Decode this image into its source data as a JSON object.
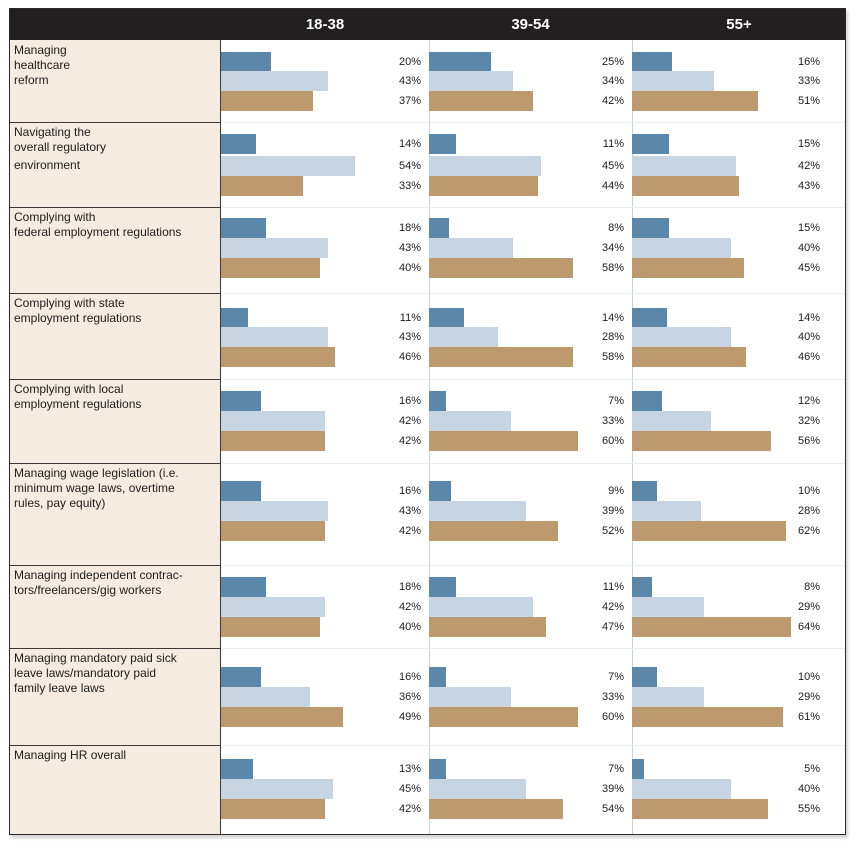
{
  "colors": {
    "header_bg": "#231f20",
    "label_bg": "#f5ebe1",
    "bar_dark": "#5b87aa",
    "bar_light": "#c7d4e1",
    "bar_tan": "#bc9a6e"
  },
  "chart_data": {
    "type": "bar",
    "orientation": "horizontal",
    "groups": [
      "18-38",
      "39-54",
      "55+"
    ],
    "categories": [
      "Managing healthcare reform",
      "Navigating the overall regulatory environment",
      "Complying with federal employment regulations",
      "Complying with state employment regulations",
      "Complying with local employment regulations",
      "Managing wage legislation (i.e. minimum wage laws, overtime rules, pay equity)",
      "Managing independent contractors/freelancers/gig workers",
      "Managing mandatory paid sick leave laws/mandatory paid family leave laws",
      "Managing HR overall"
    ],
    "label_lines": [
      [
        "Managing",
        "healthcare",
        "reform"
      ],
      [
        "Navigating the",
        "overall regulatory",
        "environment"
      ],
      [
        "Complying with",
        "federal employment regulations"
      ],
      [
        "Complying with state",
        "employment regulations"
      ],
      [
        "Complying with local",
        "employment regulations"
      ],
      [
        "Managing wage legislation (i.e.",
        "minimum wage laws, overtime",
        "rules, pay equity)"
      ],
      [
        "Managing independent contrac-",
        "tors/freelancers/gig workers"
      ],
      [
        "Managing mandatory paid sick",
        "leave laws/mandatory paid",
        "family leave laws"
      ],
      [
        "Managing HR overall"
      ]
    ],
    "values": [
      [
        [
          20,
          43,
          37
        ],
        [
          25,
          34,
          42
        ],
        [
          16,
          33,
          51
        ]
      ],
      [
        [
          14,
          54,
          33
        ],
        [
          11,
          45,
          44
        ],
        [
          15,
          42,
          43
        ]
      ],
      [
        [
          18,
          43,
          40
        ],
        [
          8,
          34,
          58
        ],
        [
          15,
          40,
          45
        ]
      ],
      [
        [
          11,
          43,
          46
        ],
        [
          14,
          28,
          58
        ],
        [
          14,
          40,
          46
        ]
      ],
      [
        [
          16,
          42,
          42
        ],
        [
          7,
          33,
          60
        ],
        [
          12,
          32,
          56
        ]
      ],
      [
        [
          16,
          43,
          42
        ],
        [
          9,
          39,
          52
        ],
        [
          10,
          28,
          62
        ]
      ],
      [
        [
          18,
          42,
          40
        ],
        [
          11,
          42,
          47
        ],
        [
          8,
          29,
          64
        ]
      ],
      [
        [
          16,
          36,
          49
        ],
        [
          7,
          33,
          60
        ],
        [
          10,
          29,
          61
        ]
      ],
      [
        [
          13,
          45,
          42
        ],
        [
          7,
          39,
          54
        ],
        [
          5,
          40,
          55
        ]
      ]
    ],
    "bar_colors": [
      "#5b87aa",
      "#c7d4e1",
      "#bc9a6e"
    ],
    "value_format": "percent",
    "xlim": [
      0,
      66
    ]
  }
}
